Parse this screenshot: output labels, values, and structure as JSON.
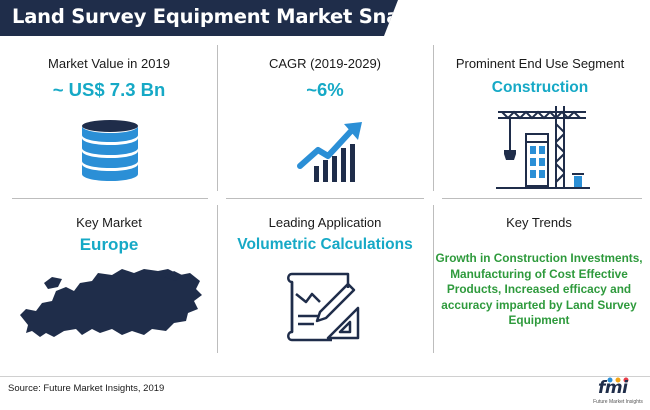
{
  "title": "Land Survey Equipment Market Snapshot",
  "cells": {
    "market_value": {
      "label": "Market Value in 2019",
      "value": "~ US$ 7.3 Bn",
      "icon": "coin-stack-icon"
    },
    "cagr": {
      "label": "CAGR (2019-2029)",
      "value": "~6%",
      "icon": "growth-chart-icon"
    },
    "end_use": {
      "label": "Prominent End Use Segment",
      "value": "Construction",
      "icon": "construction-crane-icon"
    },
    "key_market": {
      "label": "Key Market",
      "value": "Europe",
      "icon": "europe-map-icon"
    },
    "application": {
      "label": "Leading Application",
      "value": "Volumetric Calculations",
      "icon": "drafting-blueprint-icon"
    },
    "trends": {
      "label": "Key Trends",
      "text": "Growth in Construction Investments, Manufacturing of Cost Effective Products, Increased efficacy and accuracy imparted by Land Survey Equipment"
    }
  },
  "footer": {
    "source": "Source: Future Market Insights, 2019",
    "logo_text": "fmi",
    "logo_subtext": "Future Market Insights"
  },
  "colors": {
    "title_bg": "#1f2d4a",
    "accent": "#16a9c6",
    "trends_green": "#2e9a3c",
    "icon_navy": "#1f2d4a",
    "icon_blue": "#2b8fd6"
  }
}
